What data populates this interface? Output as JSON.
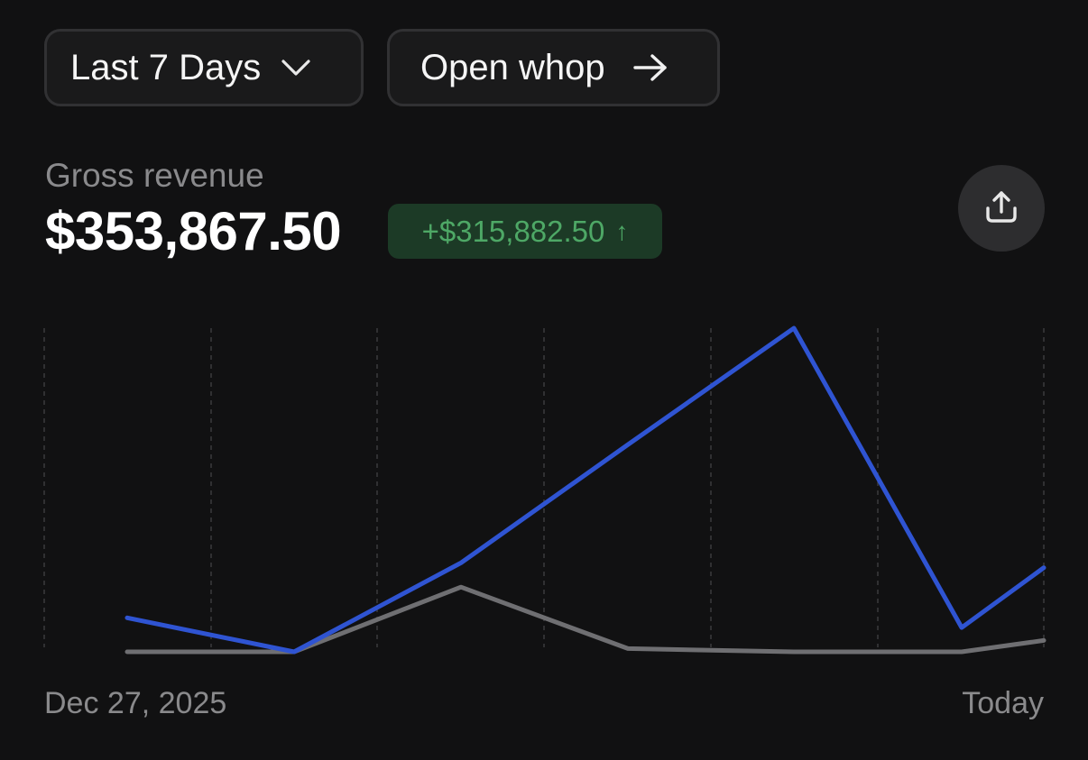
{
  "controls": {
    "range_label": "Last 7 Days",
    "open_label": "Open whop"
  },
  "metric": {
    "label": "Gross revenue",
    "value": "$353,867.50",
    "delta": "+$315,882.50",
    "delta_arrow": "↑"
  },
  "icons": {
    "range_chevron": "chevron-down-icon",
    "open_arrow": "arrow-right-icon",
    "share": "share-upload-icon"
  },
  "colors": {
    "current_series": "#2f54d2",
    "previous_series": "#6f6f72",
    "delta_positive": "#4ea866",
    "delta_background": "#1c3a26"
  },
  "chart_data": {
    "type": "line",
    "grid": "vertical dashed",
    "x_start_label": "Dec 27, 2025",
    "x_end_label": "Today",
    "ylim": [
      0,
      100
    ],
    "series": [
      {
        "values": [
          10.5,
          0,
          27.5,
          64,
          100,
          7.5,
          26
        ]
      },
      {
        "values": [
          0,
          0,
          20,
          1,
          0,
          0,
          3.5
        ]
      }
    ]
  }
}
